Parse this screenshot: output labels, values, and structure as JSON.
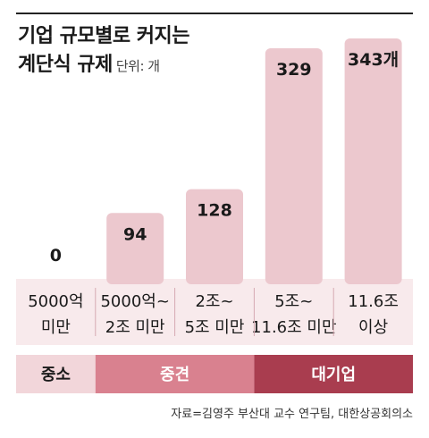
{
  "title": {
    "line1": "기업 규모별로 커지는",
    "line2": "계단식 규제",
    "unit": "단위: 개"
  },
  "chart_data": {
    "type": "bar",
    "title": "기업 규모별로 커지는 계단식 규제",
    "unit": "단위: 개",
    "categories": [
      [
        "5000억",
        "미만"
      ],
      [
        "5000억~",
        "2조 미만"
      ],
      [
        "2조~",
        "5조 미만"
      ],
      [
        "5조~",
        "11.6조 미만"
      ],
      [
        "11.6조",
        "이상"
      ]
    ],
    "values": [
      0,
      94,
      128,
      329,
      343
    ],
    "value_labels": [
      "0",
      "94",
      "128",
      "329",
      "343개"
    ],
    "ylim": [
      0,
      343
    ],
    "groups": [
      {
        "label": "중소",
        "span": [
          0,
          0
        ],
        "color": "#f2d6da"
      },
      {
        "label": "중견",
        "span": [
          1,
          2
        ],
        "color": "#d9818f"
      },
      {
        "label": "대기업",
        "span": [
          3,
          4
        ],
        "color": "#a93d4f"
      }
    ],
    "bar_color": "#ecc8ce",
    "category_band_color": "#f8eaec"
  },
  "source": "자료=김영주 부산대 교수 연구팀, 대한상공회의소"
}
